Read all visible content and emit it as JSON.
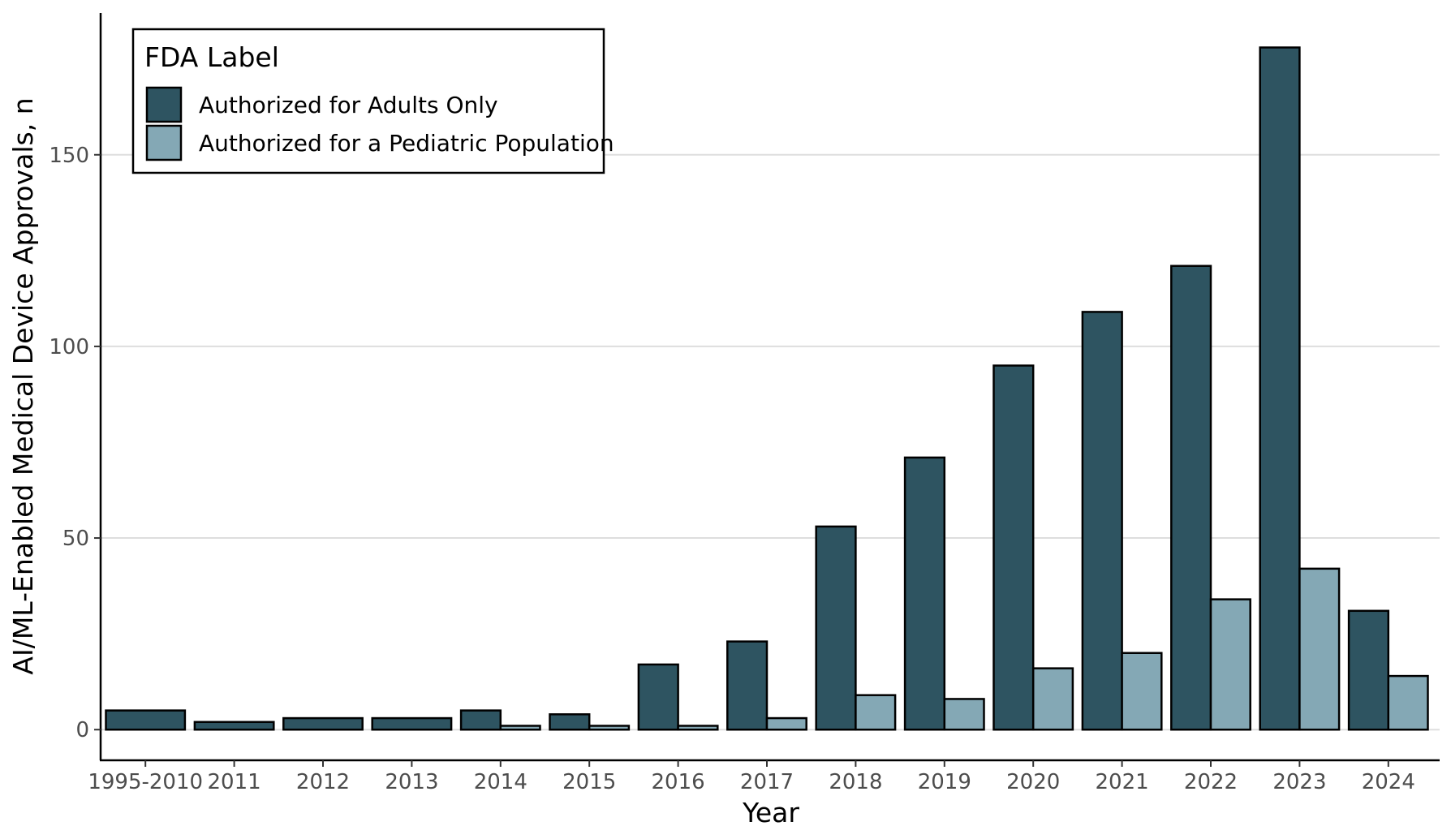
{
  "chart_data": {
    "type": "bar",
    "title": "",
    "xlabel": "Year",
    "ylabel": "AI/ML-Enabled Medical Device Approvals, n",
    "categories": [
      "1995-2010",
      "2011",
      "2012",
      "2013",
      "2014",
      "2015",
      "2016",
      "2017",
      "2018",
      "2019",
      "2020",
      "2021",
      "2022",
      "2023",
      "2024"
    ],
    "series": [
      {
        "name": "Authorized for Adults Only",
        "color": "#2e5461",
        "values": [
          5,
          2,
          3,
          3,
          5,
          4,
          17,
          23,
          53,
          71,
          95,
          109,
          121,
          178,
          31
        ]
      },
      {
        "name": "Authorized for a Pediatric Population",
        "color": "#84a8b5",
        "values": [
          0,
          0,
          0,
          0,
          1,
          1,
          1,
          3,
          9,
          8,
          16,
          20,
          34,
          42,
          14
        ]
      }
    ],
    "ylim": [
      -8,
      187
    ],
    "yticks": [
      0,
      50,
      100,
      150
    ],
    "grid": "horizontal major",
    "legend": {
      "title": "FDA Label",
      "position": "top-left"
    }
  }
}
